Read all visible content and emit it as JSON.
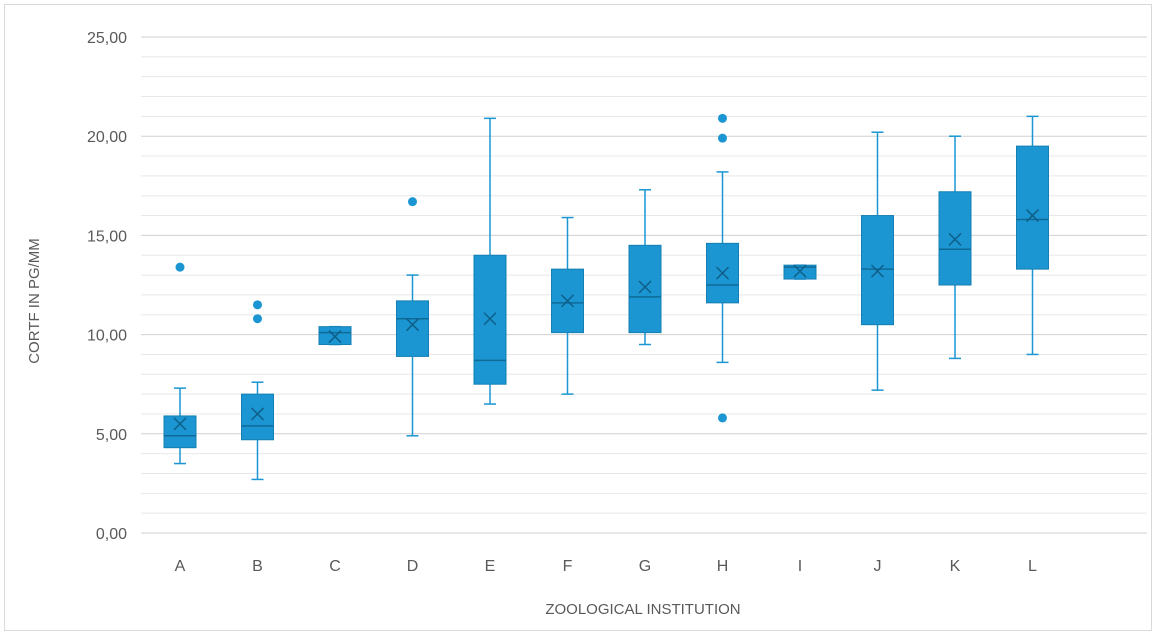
{
  "chart_data": {
    "type": "box",
    "title": "",
    "xlabel": "ZOOLOGICAL INSTITUTION",
    "ylabel": "CORTF IN PG/MM",
    "ylim": [
      0,
      25
    ],
    "yticks": [
      "0,00",
      "5,00",
      "10,00",
      "15,00",
      "20,00",
      "25,00"
    ],
    "ytick_values": [
      0,
      5,
      10,
      15,
      20,
      25
    ],
    "grid": true,
    "color": "#1b96d2",
    "categories": [
      "A",
      "B",
      "C",
      "D",
      "E",
      "F",
      "G",
      "H",
      "I",
      "J",
      "K",
      "L"
    ],
    "boxes": [
      {
        "label": "A",
        "min": 3.5,
        "q1": 4.3,
        "median": 4.9,
        "q3": 5.9,
        "max": 7.3,
        "mean": 5.5,
        "outliers": [
          13.4
        ]
      },
      {
        "label": "B",
        "min": 2.7,
        "q1": 4.7,
        "median": 5.4,
        "q3": 7.0,
        "max": 7.6,
        "mean": 6.0,
        "outliers": [
          10.8,
          11.5
        ]
      },
      {
        "label": "C",
        "min": 9.5,
        "q1": 9.5,
        "median": 10.1,
        "q3": 10.4,
        "max": 10.4,
        "mean": 9.9,
        "outliers": []
      },
      {
        "label": "D",
        "min": 4.9,
        "q1": 8.9,
        "median": 10.8,
        "q3": 11.7,
        "max": 13.0,
        "mean": 10.5,
        "outliers": [
          16.7
        ]
      },
      {
        "label": "E",
        "min": 6.5,
        "q1": 7.5,
        "median": 8.7,
        "q3": 14.0,
        "max": 20.9,
        "mean": 10.8,
        "outliers": []
      },
      {
        "label": "F",
        "min": 7.0,
        "q1": 10.1,
        "median": 11.6,
        "q3": 13.3,
        "max": 15.9,
        "mean": 11.7,
        "outliers": []
      },
      {
        "label": "G",
        "min": 9.5,
        "q1": 10.1,
        "median": 11.9,
        "q3": 14.5,
        "max": 17.3,
        "mean": 12.4,
        "outliers": []
      },
      {
        "label": "H",
        "min": 8.6,
        "q1": 11.6,
        "median": 12.5,
        "q3": 14.6,
        "max": 18.2,
        "mean": 13.1,
        "outliers": [
          5.8,
          19.9,
          20.9
        ]
      },
      {
        "label": "I",
        "min": 12.8,
        "q1": 12.8,
        "median": 13.4,
        "q3": 13.5,
        "max": 13.5,
        "mean": 13.2,
        "outliers": []
      },
      {
        "label": "J",
        "min": 7.2,
        "q1": 10.5,
        "median": 13.3,
        "q3": 16.0,
        "max": 20.2,
        "mean": 13.2,
        "outliers": []
      },
      {
        "label": "K",
        "min": 8.8,
        "q1": 12.5,
        "median": 14.3,
        "q3": 17.2,
        "max": 20.0,
        "mean": 14.8,
        "outliers": []
      },
      {
        "label": "L",
        "min": 9.0,
        "q1": 13.3,
        "median": 15.8,
        "q3": 19.5,
        "max": 21.0,
        "mean": 16.0,
        "outliers": []
      }
    ]
  }
}
